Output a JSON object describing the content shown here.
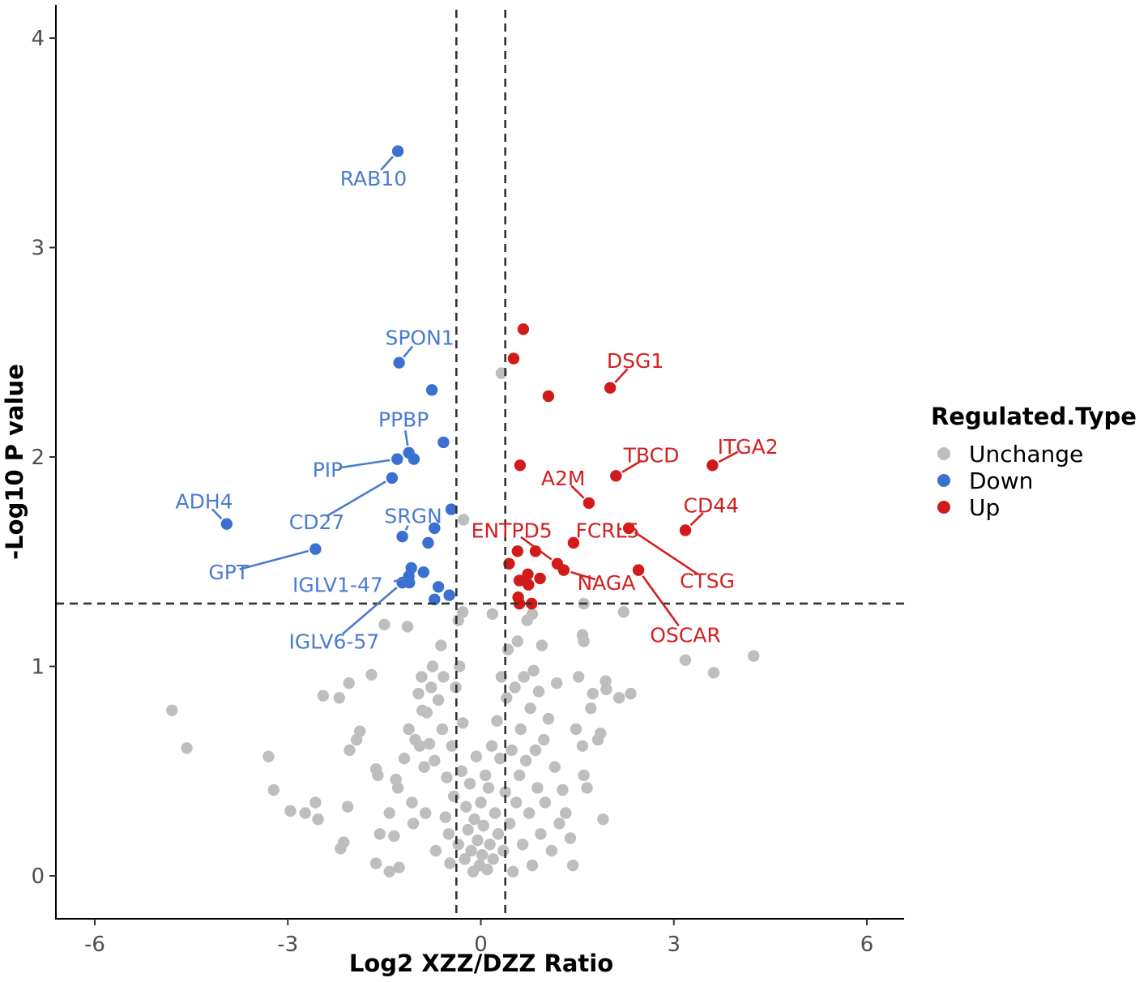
{
  "chart_data": {
    "type": "scatter",
    "title": "",
    "xlabel": "Log2 XZZ/DZZ Ratio",
    "ylabel": "-Log10 P value",
    "xlim": [
      -6.6,
      6.6
    ],
    "ylim": [
      -0.2,
      4.15
    ],
    "xticks": [
      -6,
      -3,
      0,
      3,
      6
    ],
    "xtick_labels": [
      "-6",
      "-3",
      "0",
      "3",
      "6"
    ],
    "yticks": [
      0,
      1,
      2,
      3,
      4
    ],
    "ytick_labels": [
      "0",
      "1",
      "2",
      "3",
      "4"
    ],
    "grid": false,
    "thresholds": {
      "x": [
        -0.38,
        0.38
      ],
      "y": 1.3
    },
    "legend": {
      "title": "Regulated.Type",
      "placement": "right",
      "entries": [
        {
          "label": "Unchange",
          "color": "#bebebe"
        },
        {
          "label": "Down",
          "color": "#3b6fd0"
        },
        {
          "label": "Up",
          "color": "#d21a1a"
        }
      ]
    },
    "colors": {
      "Unchange": "#bebebe",
      "Down": "#3b6fd0",
      "Up": "#d21a1a",
      "Down_label": "#4a7bd0",
      "Up_label": "#d42020"
    },
    "series": [
      {
        "name": "Down",
        "points": [
          [
            -1.29,
            3.46
          ],
          [
            -1.27,
            2.45
          ],
          [
            -0.76,
            2.32
          ],
          [
            -0.58,
            2.07
          ],
          [
            -1.12,
            2.02
          ],
          [
            -1.04,
            1.99
          ],
          [
            -1.3,
            1.99
          ],
          [
            -1.38,
            1.9
          ],
          [
            -0.46,
            1.75
          ],
          [
            -0.72,
            1.66
          ],
          [
            -1.22,
            1.62
          ],
          [
            -0.82,
            1.59
          ],
          [
            -3.95,
            1.68
          ],
          [
            -2.57,
            1.56
          ],
          [
            -1.08,
            1.47
          ],
          [
            -0.89,
            1.45
          ],
          [
            -1.12,
            1.43
          ],
          [
            -1.22,
            1.4
          ],
          [
            -1.11,
            1.4
          ],
          [
            -0.66,
            1.38
          ],
          [
            -0.49,
            1.34
          ],
          [
            -0.72,
            1.32
          ]
        ]
      },
      {
        "name": "Up",
        "points": [
          [
            0.66,
            2.61
          ],
          [
            0.51,
            2.47
          ],
          [
            1.05,
            2.29
          ],
          [
            2.01,
            2.33
          ],
          [
            0.61,
            1.96
          ],
          [
            3.6,
            1.96
          ],
          [
            2.1,
            1.91
          ],
          [
            1.68,
            1.78
          ],
          [
            3.18,
            1.65
          ],
          [
            2.3,
            1.66
          ],
          [
            1.44,
            1.59
          ],
          [
            0.57,
            1.55
          ],
          [
            0.85,
            1.55
          ],
          [
            0.44,
            1.49
          ],
          [
            1.19,
            1.49
          ],
          [
            1.29,
            1.46
          ],
          [
            2.45,
            1.46
          ],
          [
            0.73,
            1.44
          ],
          [
            0.92,
            1.42
          ],
          [
            0.6,
            1.41
          ],
          [
            0.74,
            1.39
          ],
          [
            0.58,
            1.33
          ],
          [
            0.79,
            1.3
          ],
          [
            0.6,
            1.3
          ]
        ]
      },
      {
        "name": "Unchange",
        "points": [
          [
            0.32,
            2.4
          ],
          [
            -0.27,
            1.7
          ],
          [
            -4.8,
            0.79
          ],
          [
            -4.57,
            0.61
          ],
          [
            -3.3,
            0.57
          ],
          [
            -3.22,
            0.41
          ],
          [
            -2.96,
            0.31
          ],
          [
            -2.73,
            0.3
          ],
          [
            -2.57,
            0.35
          ],
          [
            -2.53,
            0.27
          ],
          [
            -2.45,
            0.86
          ],
          [
            -2.18,
            0.13
          ],
          [
            -2.13,
            0.16
          ],
          [
            -2.2,
            0.85
          ],
          [
            -2.04,
            0.6
          ],
          [
            -2.05,
            0.92
          ],
          [
            -2.07,
            0.33
          ],
          [
            -1.93,
            0.65
          ],
          [
            -1.88,
            0.69
          ],
          [
            -1.7,
            0.96
          ],
          [
            -1.63,
            0.51
          ],
          [
            -1.6,
            0.48
          ],
          [
            -1.63,
            0.06
          ],
          [
            -1.5,
            1.2
          ],
          [
            -1.57,
            0.2
          ],
          [
            -1.42,
            0.3
          ],
          [
            -1.42,
            0.02
          ],
          [
            -1.35,
            0.19
          ],
          [
            -1.32,
            0.46
          ],
          [
            -1.29,
            0.42
          ],
          [
            -1.27,
            0.04
          ],
          [
            -1.19,
            0.56
          ],
          [
            -1.14,
            1.19
          ],
          [
            -1.12,
            0.7
          ],
          [
            -1.07,
            0.35
          ],
          [
            -1.05,
            0.25
          ],
          [
            -1.02,
            0.65
          ],
          [
            -0.97,
            0.87
          ],
          [
            -0.95,
            0.62
          ],
          [
            -0.92,
            0.95
          ],
          [
            -0.91,
            0.79
          ],
          [
            -0.88,
            0.52
          ],
          [
            -0.86,
            0.3
          ],
          [
            -0.84,
            0.78
          ],
          [
            -0.8,
            0.63
          ],
          [
            -0.77,
            0.9
          ],
          [
            -0.75,
            1.0
          ],
          [
            -0.72,
            0.55
          ],
          [
            -0.7,
            0.12
          ],
          [
            -0.66,
            0.84
          ],
          [
            -0.62,
            1.1
          ],
          [
            -0.6,
            0.7
          ],
          [
            -0.58,
            0.95
          ],
          [
            -0.55,
            0.28
          ],
          [
            -0.53,
            0.47
          ],
          [
            -0.5,
            0.2
          ],
          [
            -0.48,
            0.06
          ],
          [
            -0.45,
            0.62
          ],
          [
            -0.42,
            0.38
          ],
          [
            -0.39,
            0.9
          ],
          [
            -0.35,
            0.15
          ],
          [
            -0.33,
            1.0
          ],
          [
            -0.3,
            0.5
          ],
          [
            -0.28,
            0.73
          ],
          [
            -0.25,
            0.08
          ],
          [
            -0.23,
            0.33
          ],
          [
            -0.2,
            0.22
          ],
          [
            -0.17,
            0.44
          ],
          [
            -0.15,
            0.12
          ],
          [
            -0.12,
            0.02
          ],
          [
            -0.1,
            0.27
          ],
          [
            -0.07,
            0.57
          ],
          [
            -0.05,
            0.17
          ],
          [
            -0.02,
            0.05
          ],
          [
            0.0,
            0.35
          ],
          [
            0.02,
            0.1
          ],
          [
            0.04,
            0.24
          ],
          [
            0.07,
            0.48
          ],
          [
            0.1,
            0.03
          ],
          [
            0.12,
            0.42
          ],
          [
            0.14,
            0.15
          ],
          [
            0.17,
            0.62
          ],
          [
            0.19,
            0.08
          ],
          [
            0.22,
            0.3
          ],
          [
            0.25,
            0.74
          ],
          [
            0.27,
            0.2
          ],
          [
            0.3,
            0.56
          ],
          [
            0.32,
            0.95
          ],
          [
            0.35,
            0.12
          ],
          [
            0.38,
            0.4
          ],
          [
            0.4,
            0.85
          ],
          [
            0.42,
            1.08
          ],
          [
            0.45,
            0.25
          ],
          [
            0.48,
            0.6
          ],
          [
            0.5,
            0.02
          ],
          [
            0.53,
            0.9
          ],
          [
            0.55,
            0.35
          ],
          [
            0.57,
            1.12
          ],
          [
            0.6,
            0.48
          ],
          [
            0.62,
            0.7
          ],
          [
            0.65,
            0.15
          ],
          [
            0.67,
            0.95
          ],
          [
            0.7,
            0.55
          ],
          [
            0.72,
            1.22
          ],
          [
            0.75,
            0.3
          ],
          [
            0.77,
            0.8
          ],
          [
            0.8,
            0.05
          ],
          [
            0.82,
            0.98
          ],
          [
            0.85,
            0.6
          ],
          [
            0.88,
            0.42
          ],
          [
            0.9,
            0.88
          ],
          [
            0.93,
            0.2
          ],
          [
            0.95,
            1.1
          ],
          [
            0.98,
            0.65
          ],
          [
            1.0,
            0.35
          ],
          [
            1.05,
            0.75
          ],
          [
            1.1,
            0.12
          ],
          [
            1.15,
            0.52
          ],
          [
            1.18,
            0.92
          ],
          [
            1.22,
            0.25
          ],
          [
            1.27,
            0.41
          ],
          [
            1.32,
            0.3
          ],
          [
            1.39,
            0.18
          ],
          [
            1.43,
            0.05
          ],
          [
            1.48,
            0.7
          ],
          [
            1.52,
            0.95
          ],
          [
            1.58,
            0.62
          ],
          [
            1.6,
            0.48
          ],
          [
            1.65,
            0.42
          ],
          [
            1.71,
            0.8
          ],
          [
            1.74,
            0.87
          ],
          [
            1.82,
            0.65
          ],
          [
            1.86,
            0.68
          ],
          [
            1.9,
            0.27
          ],
          [
            1.94,
            0.93
          ],
          [
            1.95,
            0.89
          ],
          [
            2.15,
            0.85
          ],
          [
            2.22,
            1.26
          ],
          [
            2.33,
            0.87
          ],
          [
            1.58,
            1.15
          ],
          [
            1.6,
            1.12
          ],
          [
            1.6,
            1.3
          ],
          [
            3.18,
            1.03
          ],
          [
            3.62,
            0.97
          ],
          [
            4.24,
            1.05
          ],
          [
            0.18,
            1.25
          ],
          [
            -0.35,
            1.22
          ],
          [
            0.8,
            1.25
          ],
          [
            -0.28,
            1.26
          ]
        ]
      }
    ],
    "annotations": [
      {
        "text": "RAB10",
        "series": "Down",
        "point": [
          -1.29,
          3.46
        ],
        "label_at": [
          -1.67,
          3.33
        ],
        "anchor": "middle"
      },
      {
        "text": "SPON1",
        "series": "Down",
        "point": [
          -1.27,
          2.45
        ],
        "label_at": [
          -0.95,
          2.57
        ],
        "anchor": "middle"
      },
      {
        "text": "PPBP",
        "series": "Down",
        "point": [
          -1.12,
          2.02
        ],
        "label_at": [
          -1.2,
          2.18
        ],
        "anchor": "middle"
      },
      {
        "text": "PIP",
        "series": "Down",
        "point": [
          -1.3,
          1.99
        ],
        "label_at": [
          -2.38,
          1.94
        ],
        "anchor": "middle"
      },
      {
        "text": "ADH4",
        "series": "Down",
        "point": [
          -3.95,
          1.68
        ],
        "label_at": [
          -4.3,
          1.79
        ],
        "anchor": "middle"
      },
      {
        "text": "SRGN",
        "series": "Down",
        "point": [
          -1.22,
          1.62
        ],
        "label_at": [
          -1.05,
          1.72
        ],
        "anchor": "middle"
      },
      {
        "text": "CD27",
        "series": "Down",
        "point": [
          -1.38,
          1.9
        ],
        "label_at": [
          -2.55,
          1.69
        ],
        "anchor": "middle"
      },
      {
        "text": "GPT",
        "series": "Down",
        "point": [
          -2.57,
          1.56
        ],
        "label_at": [
          -3.92,
          1.45
        ],
        "anchor": "middle"
      },
      {
        "text": "IGLV1-47",
        "series": "Down",
        "point": [
          -1.08,
          1.43
        ],
        "label_at": [
          -1.52,
          1.39
        ],
        "anchor": "end"
      },
      {
        "text": "IGLV6-57",
        "series": "Down",
        "point": [
          -1.22,
          1.4
        ],
        "label_at": [
          -2.28,
          1.12
        ],
        "anchor": "middle"
      },
      {
        "text": "DSG1",
        "series": "Up",
        "point": [
          2.01,
          2.33
        ],
        "label_at": [
          2.4,
          2.46
        ],
        "anchor": "middle"
      },
      {
        "text": "TBCD",
        "series": "Up",
        "point": [
          2.1,
          1.91
        ],
        "label_at": [
          2.65,
          2.01
        ],
        "anchor": "middle"
      },
      {
        "text": "ITGA2",
        "series": "Up",
        "point": [
          3.6,
          1.96
        ],
        "label_at": [
          4.15,
          2.05
        ],
        "anchor": "middle"
      },
      {
        "text": "A2M",
        "series": "Up",
        "point": [
          1.68,
          1.78
        ],
        "label_at": [
          1.28,
          1.9
        ],
        "anchor": "middle"
      },
      {
        "text": "CD44",
        "series": "Up",
        "point": [
          3.18,
          1.65
        ],
        "label_at": [
          3.58,
          1.77
        ],
        "anchor": "middle"
      },
      {
        "text": "ENTPD5",
        "series": "Up",
        "point": [
          1.19,
          1.49
        ],
        "label_at": [
          0.48,
          1.65
        ],
        "anchor": "middle"
      },
      {
        "text": "FCRL5",
        "series": "Up",
        "point": [
          2.3,
          1.66
        ],
        "label_at": [
          1.97,
          1.65
        ],
        "anchor": "middle"
      },
      {
        "text": "NAGA",
        "series": "Up",
        "point": [
          1.29,
          1.46
        ],
        "label_at": [
          1.95,
          1.4
        ],
        "anchor": "middle"
      },
      {
        "text": "CTSG",
        "series": "Up",
        "point": [
          2.3,
          1.66
        ],
        "label_at": [
          3.52,
          1.41
        ],
        "anchor": "middle"
      },
      {
        "text": "OSCAR",
        "series": "Up",
        "point": [
          2.45,
          1.46
        ],
        "label_at": [
          3.18,
          1.15
        ],
        "anchor": "middle"
      }
    ]
  }
}
